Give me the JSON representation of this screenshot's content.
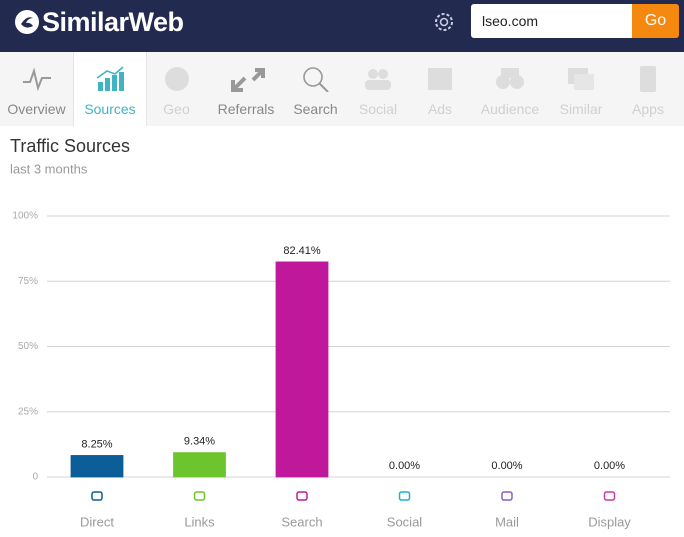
{
  "header": {
    "logo": "SimilarWeb",
    "search_value": "lseo.com",
    "button": "Go"
  },
  "nav": {
    "tabs": [
      "Overview",
      "Sources",
      "Geo",
      "Referrals",
      "Search",
      "Social",
      "Ads",
      "Audience",
      "Similar",
      "Apps"
    ]
  },
  "chart_data": {
    "type": "bar",
    "title": "Traffic Sources",
    "subtitle": "last 3 months",
    "categories": [
      "Direct",
      "Links",
      "Search",
      "Social",
      "Mail",
      "Display"
    ],
    "values": [
      8.25,
      9.34,
      82.41,
      0,
      0,
      0
    ],
    "value_labels": [
      "8.25%",
      "9.34%",
      "82.41%",
      "0.00%",
      "0.00%",
      "0.00%"
    ],
    "colors": [
      "#0b5e97",
      "#6cc52d",
      "#c0189b",
      "#1ab0d9",
      "#8c5cc7",
      "#c83aa8"
    ],
    "ylim": [
      0,
      100
    ],
    "yticks": [
      0,
      {
        "value": 25,
        "label": "25%"
      },
      {
        "value": 50,
        "label": "50%"
      },
      {
        "value": 75,
        "label": "75%"
      },
      {
        "value": 100,
        "label": "100%"
      }
    ],
    "grid": true
  }
}
